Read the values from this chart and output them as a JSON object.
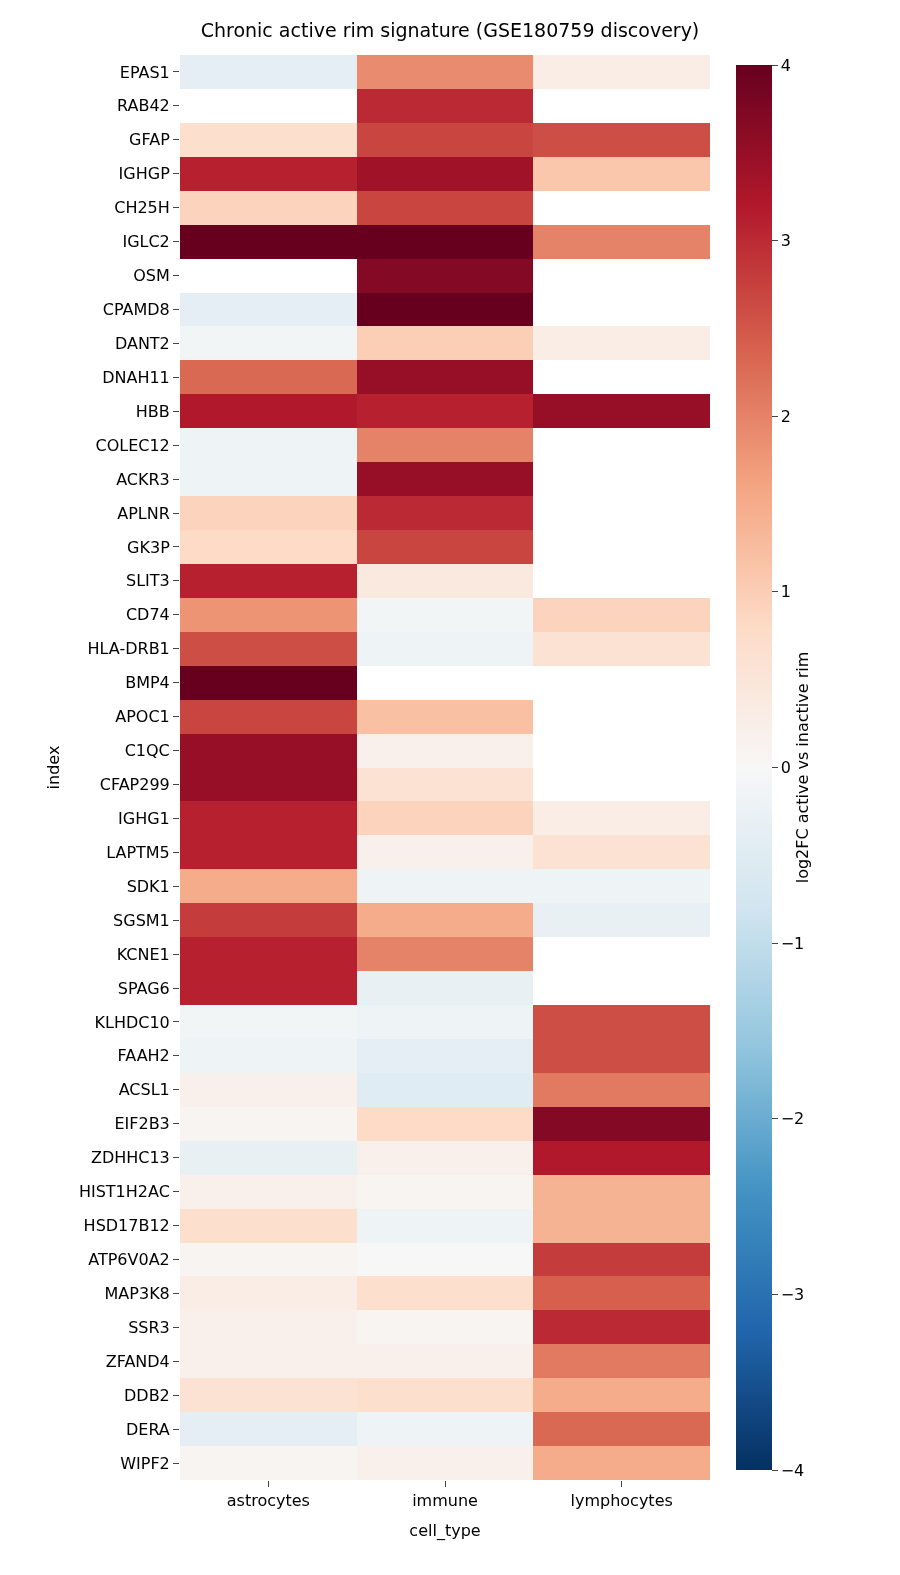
{
  "chart_data": {
    "type": "heatmap",
    "title": "Chronic active rim signature (GSE180759 discovery)",
    "xlabel": "cell_type",
    "ylabel": "index",
    "clabel": "log2FC active vs inactive rim",
    "categories": [
      "astrocytes",
      "immune",
      "lymphocytes"
    ],
    "y_categories": [
      "EPAS1",
      "RAB42",
      "GFAP",
      "IGHGP",
      "CH25H",
      "IGLC2",
      "OSM",
      "CPAMD8",
      "DANT2",
      "DNAH11",
      "HBB",
      "COLEC12",
      "ACKR3",
      "APLNR",
      "GK3P",
      "SLIT3",
      "CD74",
      "HLA-DRB1",
      "BMP4",
      "APOC1",
      "C1QC",
      "CFAP299",
      "IGHG1",
      "LAPTM5",
      "SDK1",
      "SGSM1",
      "KCNE1",
      "SPAG6",
      "KLHDC10",
      "FAAH2",
      "ACSL1",
      "EIF2B3",
      "ZDHHC13",
      "HIST1H2AC",
      "HSD17B12",
      "ATP6V0A2",
      "MAP3K8",
      "SSR3",
      "ZFAND4",
      "DDB2",
      "DERA",
      "WIPF2"
    ],
    "cells": [
      [
        -0.4,
        1.9,
        0.3
      ],
      [
        null,
        3.0,
        null
      ],
      [
        0.7,
        2.7,
        2.6
      ],
      [
        3.1,
        3.4,
        1.1
      ],
      [
        0.9,
        2.7,
        null
      ],
      [
        4.0,
        4.0,
        2.0
      ],
      [
        null,
        3.7,
        null
      ],
      [
        -0.4,
        4.0,
        null
      ],
      [
        -0.1,
        1.0,
        0.3
      ],
      [
        2.3,
        3.5,
        null
      ],
      [
        3.2,
        3.1,
        3.5
      ],
      [
        -0.2,
        2.0,
        null
      ],
      [
        -0.2,
        3.5,
        null
      ],
      [
        0.9,
        3.0,
        null
      ],
      [
        0.8,
        2.7,
        null
      ],
      [
        3.1,
        0.4,
        null
      ],
      [
        1.8,
        -0.1,
        0.9
      ],
      [
        2.6,
        -0.2,
        0.6
      ],
      [
        4.0,
        null,
        null
      ],
      [
        2.7,
        1.2,
        null
      ],
      [
        3.5,
        0.2,
        null
      ],
      [
        3.5,
        0.6,
        null
      ],
      [
        3.1,
        0.9,
        0.3
      ],
      [
        3.1,
        0.2,
        0.6
      ],
      [
        1.5,
        -0.2,
        -0.2
      ],
      [
        2.8,
        1.5,
        -0.3
      ],
      [
        3.1,
        2.0,
        null
      ],
      [
        3.1,
        -0.3,
        null
      ],
      [
        -0.1,
        -0.2,
        2.6
      ],
      [
        -0.2,
        -0.4,
        2.6
      ],
      [
        0.2,
        -0.5,
        2.1
      ],
      [
        0.1,
        0.8,
        3.7
      ],
      [
        -0.3,
        0.2,
        3.2
      ],
      [
        0.2,
        0.1,
        1.4
      ],
      [
        0.7,
        -0.2,
        1.4
      ],
      [
        0.1,
        0.0,
        2.8
      ],
      [
        0.3,
        0.7,
        2.4
      ],
      [
        0.2,
        0.1,
        3.0
      ],
      [
        0.2,
        0.2,
        2.1
      ],
      [
        0.6,
        0.7,
        1.5
      ],
      [
        -0.4,
        -0.2,
        2.3
      ],
      [
        0.1,
        0.2,
        1.5
      ]
    ],
    "clim": [
      -4,
      4
    ],
    "cticks": [
      -4,
      -3,
      -2,
      -1,
      0,
      1,
      2,
      3,
      4
    ]
  }
}
